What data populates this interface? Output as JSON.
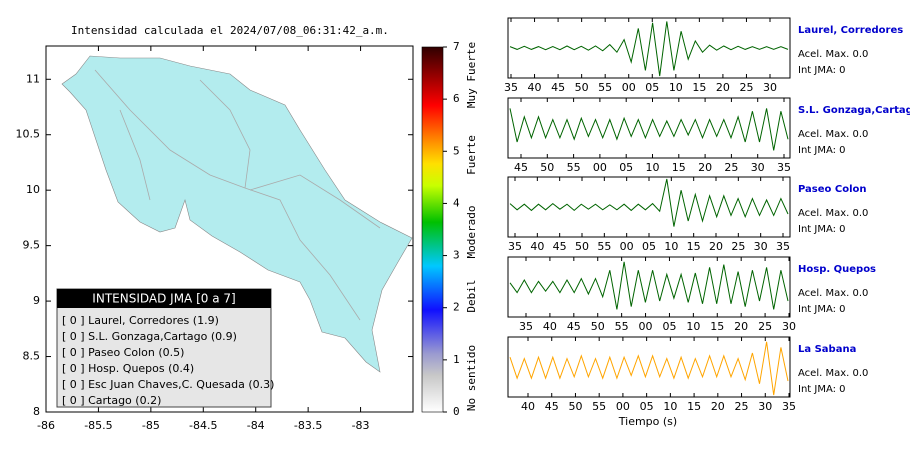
{
  "map": {
    "title": "Intensidad calculada el 2024/07/08_06:31:42_a.m.",
    "xlim": [
      -86,
      -82.5
    ],
    "ylim": [
      8,
      11.3
    ],
    "xticks": [
      -86,
      -85.5,
      -85,
      -84.5,
      -84,
      -83.5,
      -83
    ],
    "yticks": [
      8,
      8.5,
      9,
      9.5,
      10,
      10.5,
      11
    ]
  },
  "colorbar": {
    "lim": [
      0,
      7
    ],
    "ticks": [
      0,
      1,
      2,
      3,
      4,
      5,
      6,
      7
    ],
    "labels": [
      "No sentido",
      "Debil",
      "Moderado",
      "Fuerte",
      "Muy Fuerte"
    ]
  },
  "legend": {
    "title": "INTENSIDAD JMA [0 a 7]",
    "items": [
      "[ 0 ]  Laurel, Corredores (1.9)",
      "[ 0 ]  S.L. Gonzaga,Cartago (0.9)",
      "[ 0 ]  Paseo Colon (0.5)",
      "[ 0 ]  Hosp. Quepos (0.4)",
      "[ 0 ]  Esc Juan Chaves,C. Quesada (0.3)",
      "[ 0 ]  Cartago (0.2)"
    ]
  },
  "traces": [
    {
      "name": "Laurel, Corredores",
      "color": "#006400",
      "acel": "Acel. Max. 0.0",
      "jma": "Int JMA: 0",
      "ticks": [
        "35",
        "40",
        "45",
        "50",
        "55",
        "00",
        "05",
        "10",
        "15",
        "20",
        "25",
        "30"
      ],
      "envelope": [
        0.05,
        0.05,
        0.06,
        0.05,
        0.05,
        0.06,
        0.05,
        0.06,
        0.07,
        0.06,
        0.06,
        0.08,
        0.07,
        0.1,
        0.12,
        0.15,
        0.3,
        0.5,
        0.7,
        0.8,
        0.9,
        1,
        0.95,
        0.8,
        0.6,
        0.4,
        0.25,
        0.15,
        0.1,
        0.08,
        0.07,
        0.06,
        0.06,
        0.05,
        0.05,
        0.05,
        0.05,
        0.05,
        0.05,
        0.05
      ]
    },
    {
      "name": "S.L. Gonzaga,Cartago",
      "color": "#006400",
      "acel": "Acel. Max. 0.0",
      "jma": "Int JMA: 0",
      "ticks": [
        "45",
        "50",
        "55",
        "00",
        "05",
        "10",
        "15",
        "20",
        "25",
        "30",
        "35"
      ],
      "envelope": [
        0.7,
        0.5,
        0.4,
        0.35,
        0.4,
        0.35,
        0.3,
        0.35,
        0.3,
        0.4,
        0.35,
        0.3,
        0.3,
        0.35,
        0.3,
        0.4,
        0.35,
        0.3,
        0.3,
        0.35,
        0.3,
        0.3,
        0.25,
        0.3,
        0.3,
        0.25,
        0.3,
        0.35,
        0.3,
        0.3,
        0.3,
        0.35,
        0.4,
        0.5,
        0.6,
        0.5,
        0.7,
        0.8,
        0.6,
        0.4
      ]
    },
    {
      "name": "Paseo Colon",
      "color": "#006400",
      "acel": "Acel. Max. 0.0",
      "jma": "Int JMA: 0",
      "ticks": [
        "35",
        "40",
        "45",
        "50",
        "55",
        "00",
        "05",
        "10",
        "15",
        "20",
        "25",
        "30",
        "35"
      ],
      "envelope": [
        0.12,
        0.1,
        0.1,
        0.12,
        0.1,
        0.1,
        0.12,
        0.08,
        0.1,
        0.12,
        0.1,
        0.08,
        0.1,
        0.1,
        0.08,
        0.1,
        0.1,
        0.12,
        0.1,
        0.1,
        0.12,
        0.15,
        1,
        0.7,
        0.6,
        0.5,
        0.45,
        0.5,
        0.4,
        0.35,
        0.4,
        0.3,
        0.3,
        0.35,
        0.3,
        0.3,
        0.25,
        0.3,
        0.3,
        0.25
      ]
    },
    {
      "name": "Hosp. Quepos",
      "color": "#006400",
      "acel": "Acel. Max. 0.0",
      "jma": "Int JMA: 0",
      "ticks": [
        "35",
        "40",
        "45",
        "50",
        "55",
        "00",
        "05",
        "10",
        "15",
        "20",
        "25",
        "30"
      ],
      "envelope": [
        0.15,
        0.2,
        0.25,
        0.2,
        0.2,
        0.15,
        0.2,
        0.2,
        0.25,
        0.2,
        0.3,
        0.25,
        0.3,
        0.35,
        0.6,
        0.8,
        0.9,
        0.7,
        0.6,
        0.55,
        0.6,
        0.5,
        0.45,
        0.4,
        0.45,
        0.55,
        0.5,
        0.6,
        0.7,
        0.6,
        0.8,
        0.6,
        0.55,
        0.7,
        0.6,
        0.5,
        0.7,
        0.8,
        0.6,
        0.5
      ]
    },
    {
      "name": "La Sabana",
      "color": "#ffa500",
      "acel": "Acel. Max. 0.0",
      "jma": "Int JMA: 0",
      "ticks": [
        "40",
        "45",
        "50",
        "55",
        "00",
        "05",
        "10",
        "15",
        "20",
        "25",
        "30",
        "35"
      ],
      "envelope": [
        0.35,
        0.4,
        0.3,
        0.4,
        0.35,
        0.4,
        0.35,
        0.4,
        0.3,
        0.35,
        0.4,
        0.35,
        0.3,
        0.4,
        0.35,
        0.4,
        0.35,
        0.3,
        0.4,
        0.35,
        0.4,
        0.35,
        0.3,
        0.4,
        0.35,
        0.4,
        0.3,
        0.35,
        0.4,
        0.35,
        0.4,
        0.35,
        0.3,
        0.45,
        0.5,
        0.6,
        0.9,
        1,
        0.7,
        0.5
      ]
    }
  ],
  "xlabel": "Tiempo (s)"
}
